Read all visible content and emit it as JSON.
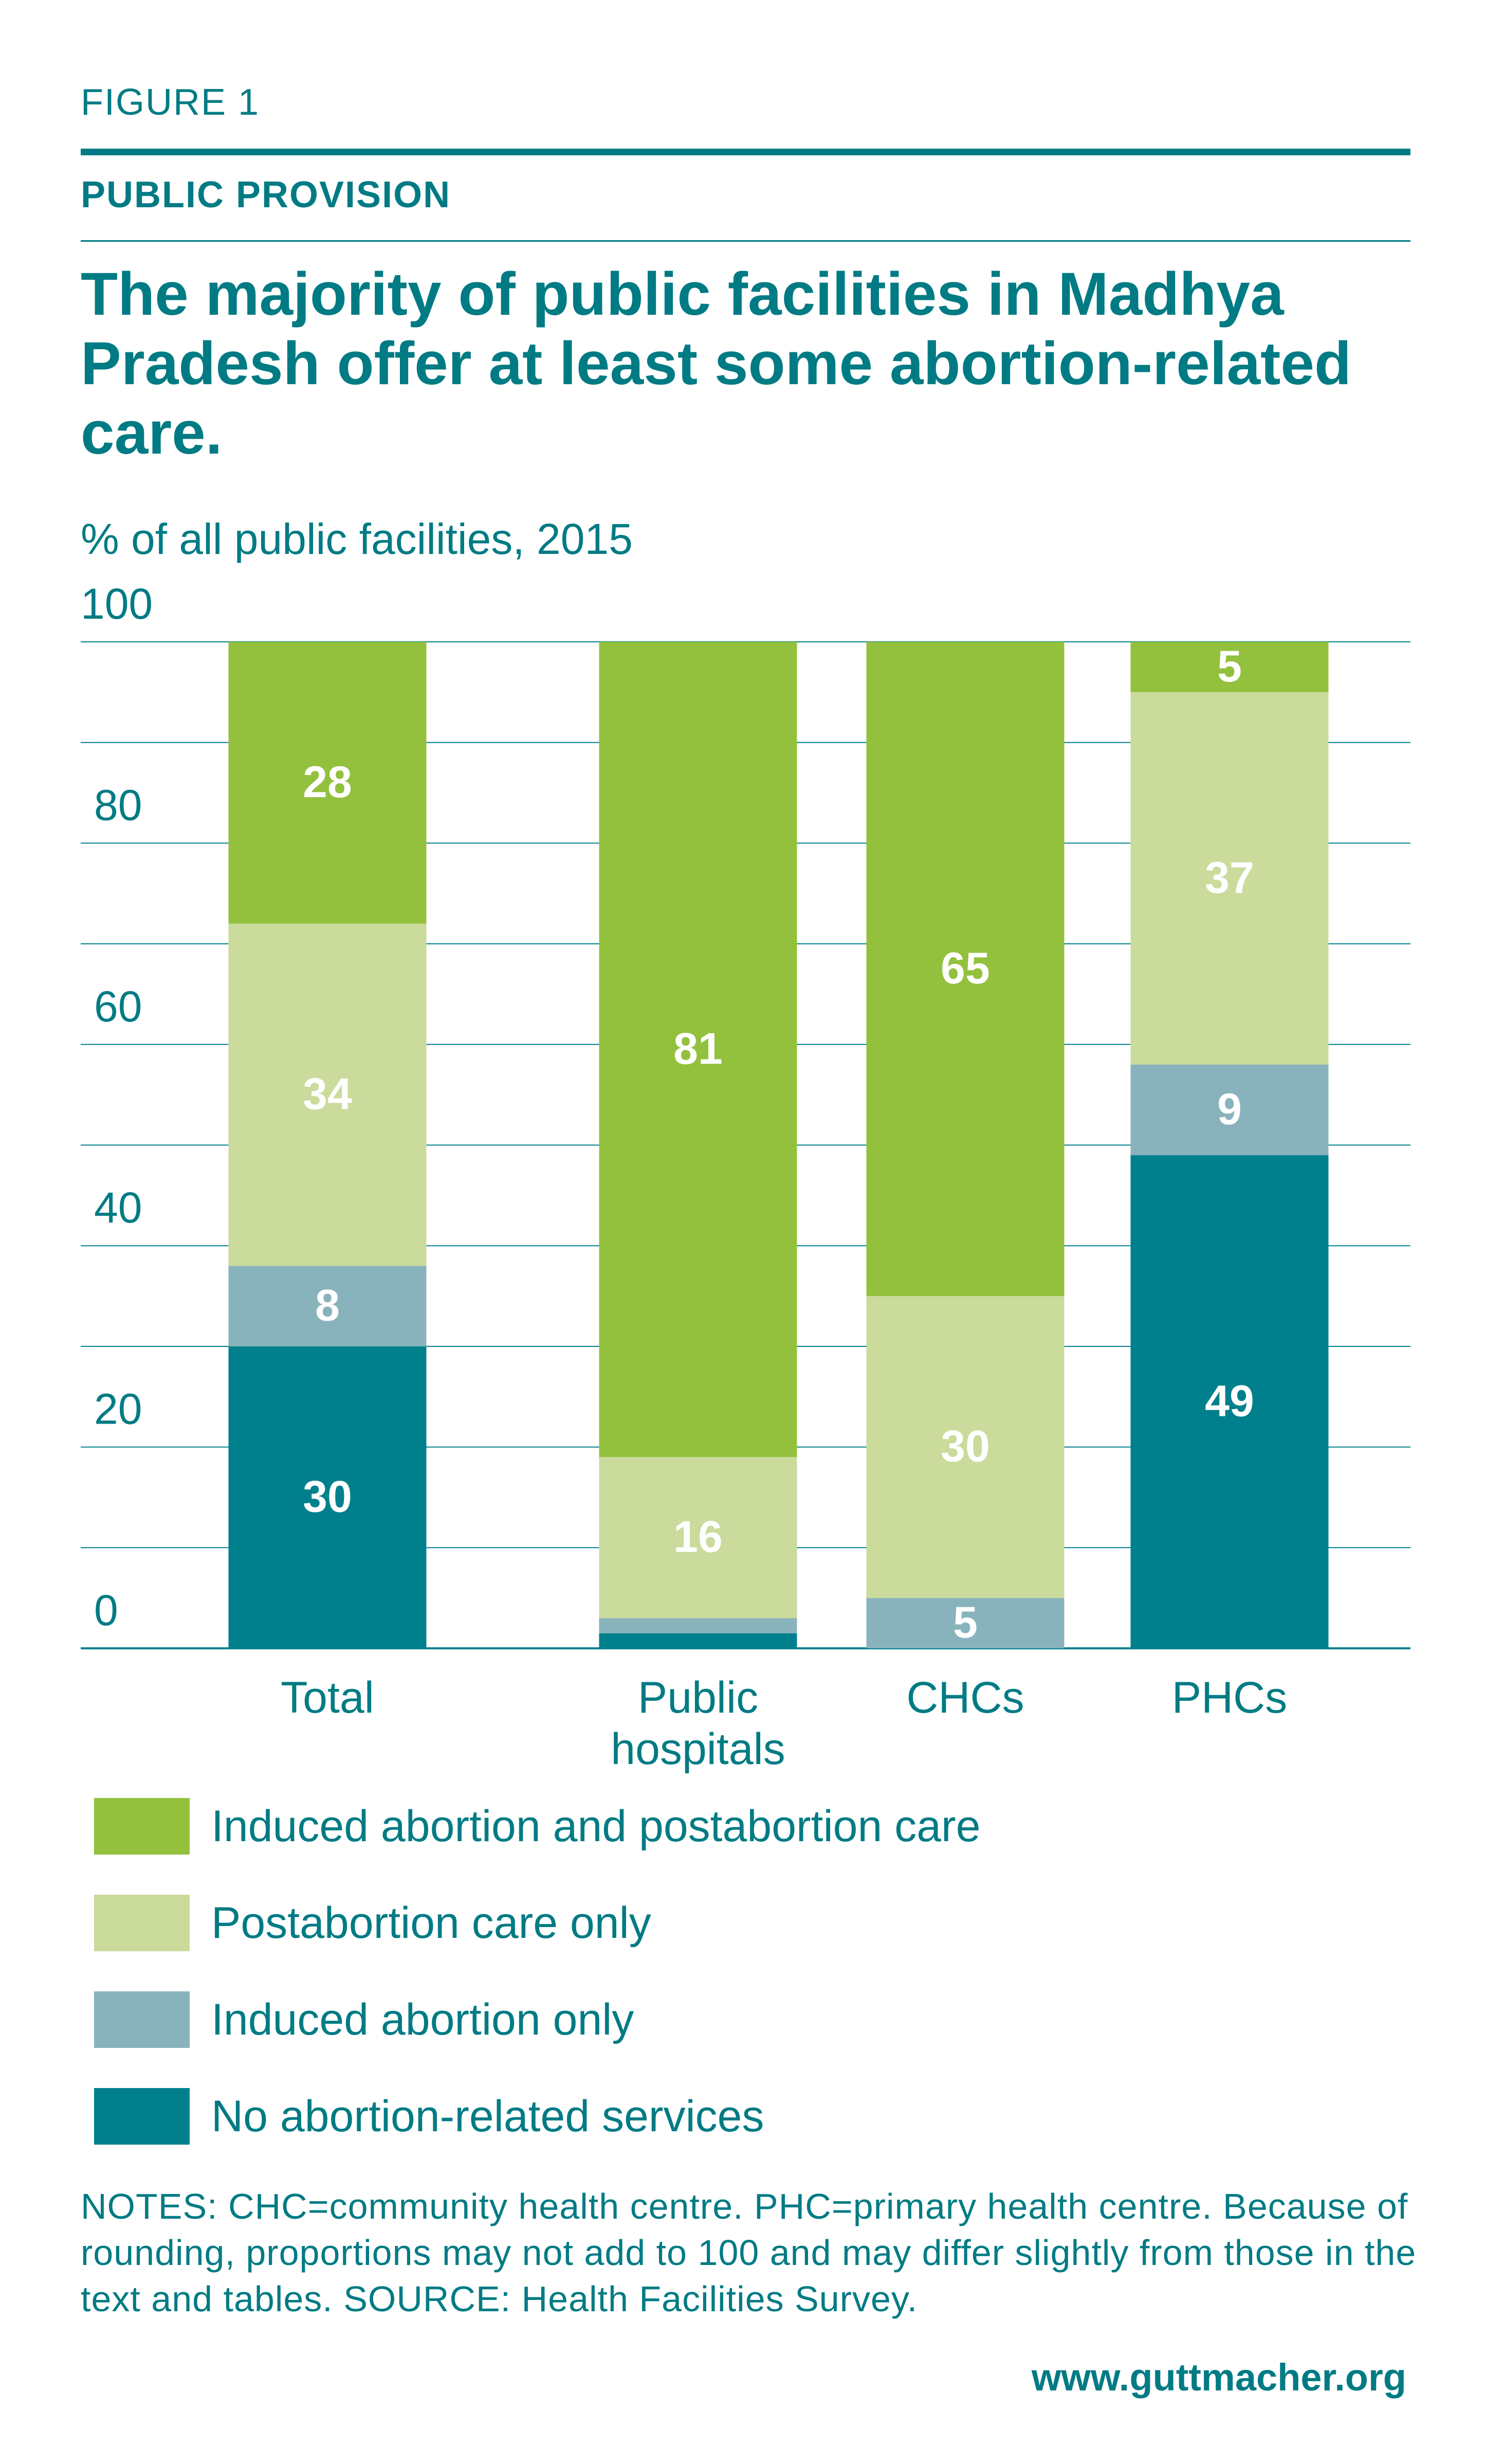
{
  "header": {
    "figure_label": "FIGURE 1",
    "section": "PUBLIC PROVISION",
    "title": "The majority of public facilities in Madhya Pradesh offer at least some abortion-related care."
  },
  "colors": {
    "text": "#007b84",
    "dark_teal": "#00808c",
    "grey_blue": "#89b3bc",
    "light_green": "#cadb9c",
    "green": "#93c13e"
  },
  "chart_data": {
    "type": "bar",
    "stacked": true,
    "ylabel": "% of all public facilities, 2015",
    "ylim": [
      0,
      100
    ],
    "yticks": [
      0,
      20,
      40,
      60,
      80,
      100
    ],
    "categories": [
      "Total",
      "Public hospitals",
      "CHCs",
      "PHCs"
    ],
    "series": [
      {
        "name": "No abortion-related services",
        "color": "#00808c",
        "values": [
          30,
          1.5,
          0,
          49
        ],
        "labels": [
          "30",
          "",
          "",
          "49"
        ]
      },
      {
        "name": "Induced abortion only",
        "color": "#89b3bc",
        "values": [
          8,
          1.5,
          5,
          9
        ],
        "labels": [
          "8",
          "",
          "5",
          "9"
        ]
      },
      {
        "name": "Postabortion care only",
        "color": "#cadb9c",
        "values": [
          34,
          16,
          30,
          37
        ],
        "labels": [
          "34",
          "16",
          "30",
          "37"
        ]
      },
      {
        "name": "Induced abortion and postabortion care",
        "color": "#93c13e",
        "values": [
          28,
          81,
          65,
          5
        ],
        "labels": [
          "28",
          "81",
          "65",
          "5"
        ]
      }
    ],
    "legend_order": [
      "Induced abortion and postabortion care",
      "Postabortion care only",
      "Induced abortion only",
      "No abortion-related services"
    ],
    "grid": true,
    "legend_position": "bottom"
  },
  "footer": {
    "notes": "NOTES: CHC=community health centre. PHC=primary health centre. Because of rounding, proportions may not add to 100 and may differ slightly from those in the text and tables. SOURCE: Health Facilities Survey.",
    "url": "www.guttmacher.org"
  }
}
